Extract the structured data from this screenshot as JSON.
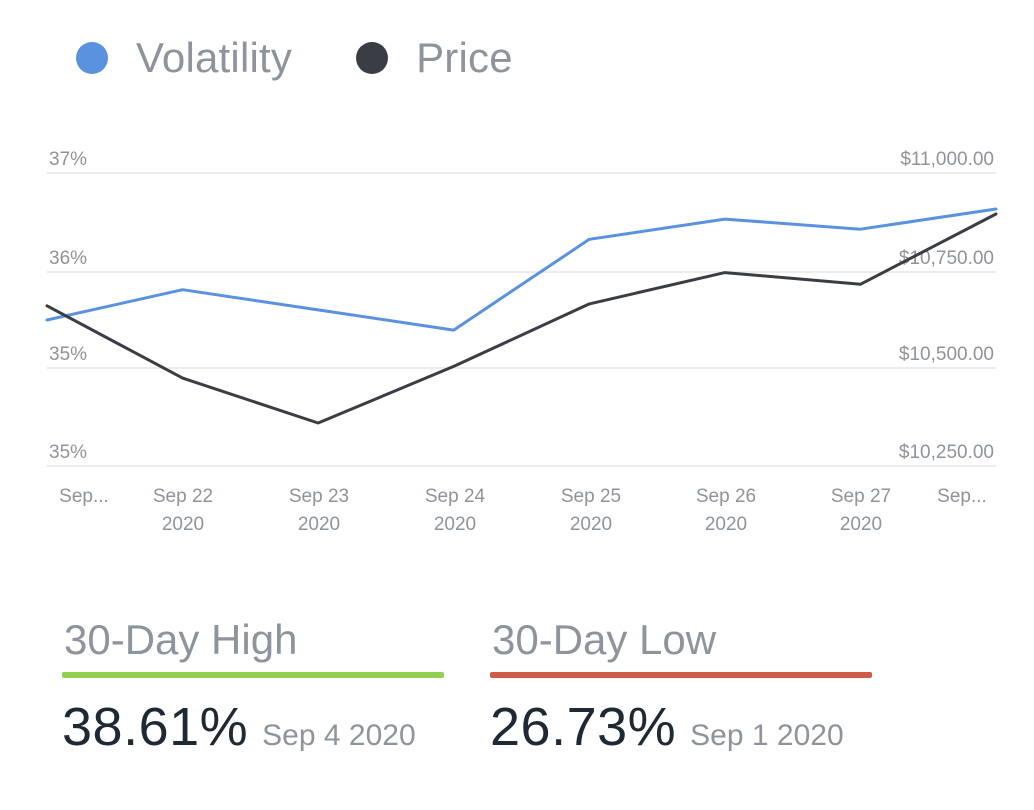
{
  "legend": {
    "volatility_label": "Volatility",
    "price_label": "Price"
  },
  "colors": {
    "volatility": "#5a92e0",
    "price": "#3a3e44",
    "grid": "#e3e5e8",
    "high_bar": "#8fd14f",
    "low_bar": "#cf5a45"
  },
  "chart_data": {
    "type": "line",
    "x": [
      "Sep...",
      "Sep 22\n2020",
      "Sep 23\n2020",
      "Sep 24\n2020",
      "Sep 25\n2020",
      "Sep 26\n2020",
      "Sep 27\n2020",
      "Sep..."
    ],
    "y_left_ticks": [
      "37%",
      "36%",
      "35%",
      "35%"
    ],
    "y_right_ticks": [
      "$11,000.00",
      "$10,750.00",
      "$10,500.00",
      "$10,250.00"
    ],
    "y_right_range": [
      10250,
      11000
    ],
    "series": [
      {
        "name": "Volatility",
        "axis": "left",
        "values": [
          35.5,
          35.8,
          35.6,
          35.4,
          36.3,
          36.5,
          36.4,
          36.6
        ]
      },
      {
        "name": "Price",
        "axis": "right",
        "values": [
          10660,
          10475,
          10360,
          10505,
          10665,
          10745,
          10715,
          10895
        ]
      }
    ],
    "grid": true,
    "legend_position": "top-left"
  },
  "stats": {
    "high": {
      "label": "30-Day High",
      "value": "38.61%",
      "date": "Sep 4 2020"
    },
    "low": {
      "label": "30-Day Low",
      "value": "26.73%",
      "date": "Sep 1 2020"
    }
  }
}
